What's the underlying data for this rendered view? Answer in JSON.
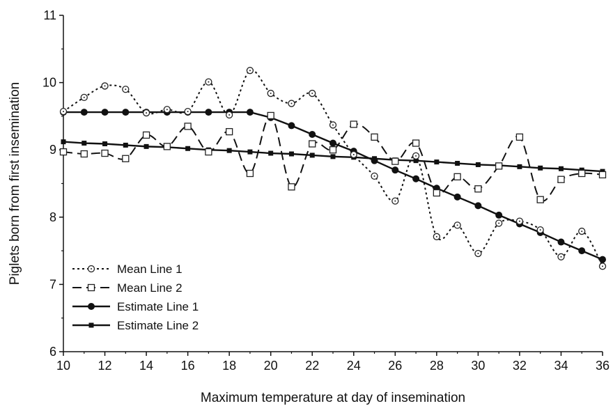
{
  "chart_data": {
    "type": "line",
    "xlabel": "Maximum temperature at day of insemination",
    "ylabel": "Piglets born from first insemination",
    "xlim": [
      10,
      36
    ],
    "ylim": [
      6,
      11
    ],
    "x_ticks": [
      "10",
      "12",
      "14",
      "16",
      "18",
      "20",
      "22",
      "24",
      "26",
      "28",
      "30",
      "32",
      "34",
      "36"
    ],
    "y_ticks": [
      "6",
      "7",
      "8",
      "9",
      "10",
      "11"
    ],
    "grid": false,
    "legend_position": "bottom-left",
    "x": [
      10,
      11,
      12,
      13,
      14,
      15,
      16,
      17,
      18,
      19,
      20,
      21,
      22,
      23,
      24,
      25,
      26,
      27,
      28,
      29,
      30,
      31,
      32,
      33,
      34,
      35,
      36
    ],
    "series": [
      {
        "name": "Mean Line 1",
        "style": "dotted",
        "marker": "open-circle",
        "values": [
          9.57,
          9.78,
          9.95,
          9.9,
          9.55,
          9.6,
          9.57,
          10.01,
          9.52,
          10.18,
          9.84,
          9.69,
          9.84,
          9.37,
          8.93,
          8.61,
          8.24,
          8.91,
          7.71,
          7.88,
          7.46,
          7.91,
          7.94,
          7.81,
          7.41,
          7.79,
          7.27
        ]
      },
      {
        "name": "Mean Line 2",
        "style": "dashed",
        "marker": "open-square",
        "values": [
          8.97,
          8.94,
          8.95,
          8.87,
          9.22,
          9.05,
          9.35,
          8.97,
          9.27,
          8.65,
          9.51,
          8.45,
          9.09,
          9.0,
          9.38,
          9.19,
          8.83,
          9.1,
          8.36,
          8.6,
          8.42,
          8.76,
          9.19,
          8.26,
          8.56,
          8.65,
          8.63
        ]
      },
      {
        "name": "Estimate Line 1",
        "style": "solid",
        "marker": "filled-circle",
        "values": [
          9.56,
          9.56,
          9.56,
          9.56,
          9.56,
          9.56,
          9.56,
          9.56,
          9.56,
          9.56,
          9.48,
          9.36,
          9.23,
          9.1,
          8.98,
          8.84,
          8.7,
          8.57,
          8.43,
          8.3,
          8.17,
          8.03,
          7.9,
          7.77,
          7.63,
          7.5,
          7.37
        ]
      },
      {
        "name": "Estimate Line 2",
        "style": "solid",
        "marker": "filled-square",
        "values": [
          9.12,
          9.1,
          9.09,
          9.07,
          9.05,
          9.04,
          9.02,
          9.0,
          8.99,
          8.97,
          8.95,
          8.94,
          8.92,
          8.9,
          8.89,
          8.87,
          8.85,
          8.84,
          8.82,
          8.8,
          8.78,
          8.77,
          8.75,
          8.73,
          8.72,
          8.7,
          8.68
        ]
      }
    ]
  }
}
